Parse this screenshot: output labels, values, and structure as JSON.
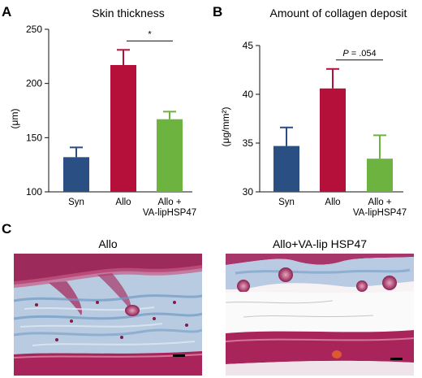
{
  "figure": {
    "panel_labels": [
      "A",
      "B",
      "C"
    ]
  },
  "chart_data": [
    {
      "type": "bar",
      "panel": "A",
      "title": "Skin thickness",
      "ylabel": "(μm)",
      "categories": [
        "Syn",
        "Allo",
        "Allo +\nVA-lipHSP47"
      ],
      "values": [
        132,
        217,
        167
      ],
      "errors": [
        9,
        14,
        7
      ],
      "colors": [
        "#2a4f82",
        "#b5103a",
        "#6db33f"
      ],
      "ylim": [
        100,
        250
      ],
      "yticks": [
        100,
        150,
        200,
        250
      ],
      "significance": {
        "between": [
          1,
          2
        ],
        "label": "*"
      }
    },
    {
      "type": "bar",
      "panel": "B",
      "title": "Amount of collagen deposit",
      "ylabel": "(μg/mm²)",
      "categories": [
        "Syn",
        "Allo",
        "Allo +\nVA-lipHSP47"
      ],
      "values": [
        34.7,
        40.6,
        33.4
      ],
      "errors": [
        1.9,
        2.0,
        2.4
      ],
      "colors": [
        "#2a4f82",
        "#b5103a",
        "#6db33f"
      ],
      "ylim": [
        30,
        45
      ],
      "yticks": [
        30,
        35,
        40,
        45
      ],
      "significance": {
        "between": [
          1,
          2
        ],
        "label": "P = .054"
      }
    }
  ],
  "histology": {
    "left_label": "Allo",
    "right_label": "Allo+VA-lip HSP47"
  }
}
